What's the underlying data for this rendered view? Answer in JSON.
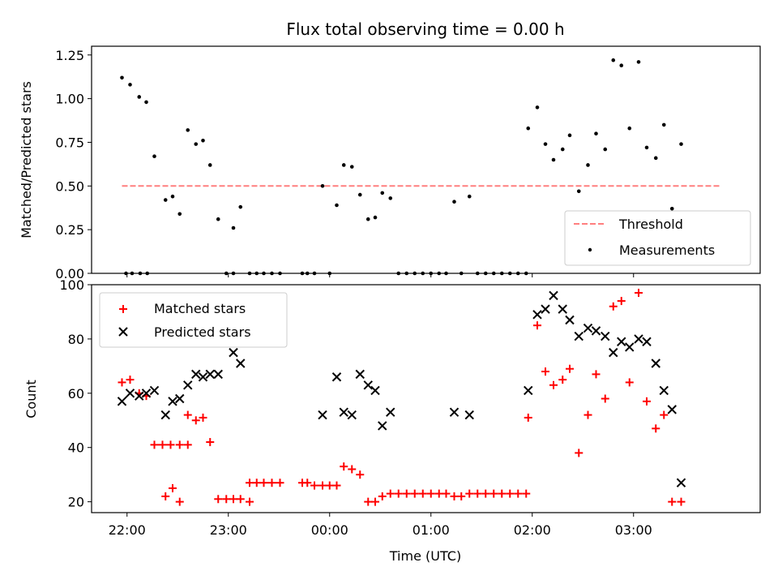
{
  "chart_data": {
    "title": "Flux total observing time = 0.00 h",
    "xlabel": "Time (UTC)",
    "x_tick_labels": [
      "22:00",
      "23:00",
      "00:00",
      "01:00",
      "02:00",
      "03:00"
    ],
    "x_tick_hours": [
      22,
      23,
      24,
      25,
      26,
      27
    ],
    "xlim_hours": [
      21.65,
      28.25
    ],
    "panels": [
      {
        "type": "scatter",
        "ylabel": "Matched/Predicted stars",
        "ylim": [
          0,
          1.3
        ],
        "yticks": [
          0.0,
          0.25,
          0.5,
          0.75,
          1.0,
          1.25
        ],
        "ytick_labels": [
          "0.00",
          "0.25",
          "0.50",
          "0.75",
          "1.00",
          "1.25"
        ],
        "legend_position": "lower right",
        "threshold": {
          "name": "Threshold",
          "value": 0.5,
          "x_range": [
            21.95,
            27.85
          ],
          "color": "#ff7f7f",
          "style": "dashed"
        },
        "series": [
          {
            "name": "Measurements",
            "color": "#000000",
            "marker": "dot",
            "points": [
              [
                21.95,
                1.12
              ],
              [
                22.03,
                1.08
              ],
              [
                22.12,
                1.01
              ],
              [
                22.19,
                0.98
              ],
              [
                22.27,
                0.67
              ],
              [
                21.99,
                0.0
              ],
              [
                22.05,
                0.0
              ],
              [
                22.13,
                0.0
              ],
              [
                22.2,
                0.0
              ],
              [
                22.38,
                0.42
              ],
              [
                22.45,
                0.44
              ],
              [
                22.52,
                0.34
              ],
              [
                22.6,
                0.82
              ],
              [
                22.68,
                0.74
              ],
              [
                22.75,
                0.76
              ],
              [
                22.82,
                0.62
              ],
              [
                22.9,
                0.31
              ],
              [
                22.98,
                0.0
              ],
              [
                23.05,
                0.0
              ],
              [
                23.05,
                0.26
              ],
              [
                23.12,
                0.38
              ],
              [
                23.21,
                0.0
              ],
              [
                23.28,
                0.0
              ],
              [
                23.35,
                0.0
              ],
              [
                23.43,
                0.0
              ],
              [
                23.51,
                0.0
              ],
              [
                23.73,
                0.0
              ],
              [
                23.78,
                0.0
              ],
              [
                23.85,
                0.0
              ],
              [
                23.93,
                0.5
              ],
              [
                24.0,
                0.0
              ],
              [
                24.07,
                0.39
              ],
              [
                24.14,
                0.62
              ],
              [
                24.22,
                0.61
              ],
              [
                24.3,
                0.45
              ],
              [
                24.38,
                0.31
              ],
              [
                24.45,
                0.32
              ],
              [
                24.52,
                0.46
              ],
              [
                24.6,
                0.43
              ],
              [
                24.68,
                0.0
              ],
              [
                24.76,
                0.0
              ],
              [
                24.84,
                0.0
              ],
              [
                24.92,
                0.0
              ],
              [
                25.0,
                0.0
              ],
              [
                25.08,
                0.0
              ],
              [
                25.15,
                0.0
              ],
              [
                25.23,
                0.41
              ],
              [
                25.3,
                0.0
              ],
              [
                25.38,
                0.44
              ],
              [
                25.46,
                0.0
              ],
              [
                25.54,
                0.0
              ],
              [
                25.62,
                0.0
              ],
              [
                25.7,
                0.0
              ],
              [
                25.78,
                0.0
              ],
              [
                25.86,
                0.0
              ],
              [
                25.94,
                0.0
              ],
              [
                25.96,
                0.83
              ],
              [
                26.05,
                0.95
              ],
              [
                26.13,
                0.74
              ],
              [
                26.21,
                0.65
              ],
              [
                26.3,
                0.71
              ],
              [
                26.37,
                0.79
              ],
              [
                26.46,
                0.47
              ],
              [
                26.55,
                0.62
              ],
              [
                26.63,
                0.8
              ],
              [
                26.72,
                0.71
              ],
              [
                26.8,
                1.22
              ],
              [
                26.88,
                1.19
              ],
              [
                26.96,
                0.83
              ],
              [
                27.05,
                1.21
              ],
              [
                27.13,
                0.72
              ],
              [
                27.22,
                0.66
              ],
              [
                27.3,
                0.85
              ],
              [
                27.38,
                0.37
              ],
              [
                27.47,
                0.74
              ]
            ]
          }
        ]
      },
      {
        "type": "scatter",
        "ylabel": "Count",
        "ylim": [
          16,
          100
        ],
        "yticks": [
          20,
          40,
          60,
          80,
          100
        ],
        "ytick_labels": [
          "20",
          "40",
          "60",
          "80",
          "100"
        ],
        "legend_position": "upper left",
        "series": [
          {
            "name": "Matched stars",
            "color": "#ff0000",
            "marker": "plus",
            "points": [
              [
                21.95,
                64
              ],
              [
                22.03,
                65
              ],
              [
                22.12,
                60
              ],
              [
                22.19,
                59
              ],
              [
                22.27,
                41
              ],
              [
                22.35,
                41
              ],
              [
                22.43,
                41
              ],
              [
                22.52,
                41
              ],
              [
                22.6,
                41
              ],
              [
                22.38,
                22
              ],
              [
                22.45,
                25
              ],
              [
                22.52,
                20
              ],
              [
                22.6,
                52
              ],
              [
                22.68,
                50
              ],
              [
                22.75,
                51
              ],
              [
                22.82,
                42
              ],
              [
                22.9,
                21
              ],
              [
                22.98,
                21
              ],
              [
                23.05,
                21
              ],
              [
                23.12,
                21
              ],
              [
                23.21,
                20
              ],
              [
                23.21,
                27
              ],
              [
                23.28,
                27
              ],
              [
                23.35,
                27
              ],
              [
                23.43,
                27
              ],
              [
                23.51,
                27
              ],
              [
                23.73,
                27
              ],
              [
                23.78,
                27
              ],
              [
                23.85,
                26
              ],
              [
                23.93,
                26
              ],
              [
                24.0,
                26
              ],
              [
                24.07,
                26
              ],
              [
                24.14,
                33
              ],
              [
                24.22,
                32
              ],
              [
                24.3,
                30
              ],
              [
                24.38,
                20
              ],
              [
                24.45,
                20
              ],
              [
                24.52,
                22
              ],
              [
                24.6,
                23
              ],
              [
                24.68,
                23
              ],
              [
                24.76,
                23
              ],
              [
                24.84,
                23
              ],
              [
                24.92,
                23
              ],
              [
                25.0,
                23
              ],
              [
                25.08,
                23
              ],
              [
                25.15,
                23
              ],
              [
                25.23,
                22
              ],
              [
                25.3,
                22
              ],
              [
                25.38,
                23
              ],
              [
                25.46,
                23
              ],
              [
                25.54,
                23
              ],
              [
                25.62,
                23
              ],
              [
                25.7,
                23
              ],
              [
                25.78,
                23
              ],
              [
                25.86,
                23
              ],
              [
                25.94,
                23
              ],
              [
                25.96,
                51
              ],
              [
                26.05,
                85
              ],
              [
                26.13,
                68
              ],
              [
                26.21,
                63
              ],
              [
                26.3,
                65
              ],
              [
                26.37,
                69
              ],
              [
                26.46,
                38
              ],
              [
                26.55,
                52
              ],
              [
                26.63,
                67
              ],
              [
                26.72,
                58
              ],
              [
                26.8,
                92
              ],
              [
                26.88,
                94
              ],
              [
                26.96,
                64
              ],
              [
                27.05,
                97
              ],
              [
                27.13,
                57
              ],
              [
                27.22,
                47
              ],
              [
                27.3,
                52
              ],
              [
                27.38,
                20
              ],
              [
                27.47,
                20
              ]
            ]
          },
          {
            "name": "Predicted stars",
            "color": "#000000",
            "marker": "x",
            "points": [
              [
                21.95,
                57
              ],
              [
                22.03,
                60
              ],
              [
                22.12,
                59
              ],
              [
                22.19,
                60
              ],
              [
                22.27,
                61
              ],
              [
                22.38,
                52
              ],
              [
                22.45,
                57
              ],
              [
                22.52,
                58
              ],
              [
                22.6,
                63
              ],
              [
                22.68,
                67
              ],
              [
                22.75,
                66
              ],
              [
                22.82,
                67
              ],
              [
                22.9,
                67
              ],
              [
                23.05,
                75
              ],
              [
                23.12,
                71
              ],
              [
                23.93,
                52
              ],
              [
                24.07,
                66
              ],
              [
                24.14,
                53
              ],
              [
                24.22,
                52
              ],
              [
                24.3,
                67
              ],
              [
                24.38,
                63
              ],
              [
                24.45,
                61
              ],
              [
                24.52,
                48
              ],
              [
                24.6,
                53
              ],
              [
                25.23,
                53
              ],
              [
                25.38,
                52
              ],
              [
                25.96,
                61
              ],
              [
                26.05,
                89
              ],
              [
                26.13,
                91
              ],
              [
                26.21,
                96
              ],
              [
                26.3,
                91
              ],
              [
                26.37,
                87
              ],
              [
                26.46,
                81
              ],
              [
                26.55,
                84
              ],
              [
                26.63,
                83
              ],
              [
                26.72,
                81
              ],
              [
                26.8,
                75
              ],
              [
                26.88,
                79
              ],
              [
                26.96,
                77
              ],
              [
                27.05,
                80
              ],
              [
                27.13,
                79
              ],
              [
                27.22,
                71
              ],
              [
                27.3,
                61
              ],
              [
                27.38,
                54
              ],
              [
                27.47,
                27
              ]
            ]
          }
        ]
      }
    ]
  }
}
